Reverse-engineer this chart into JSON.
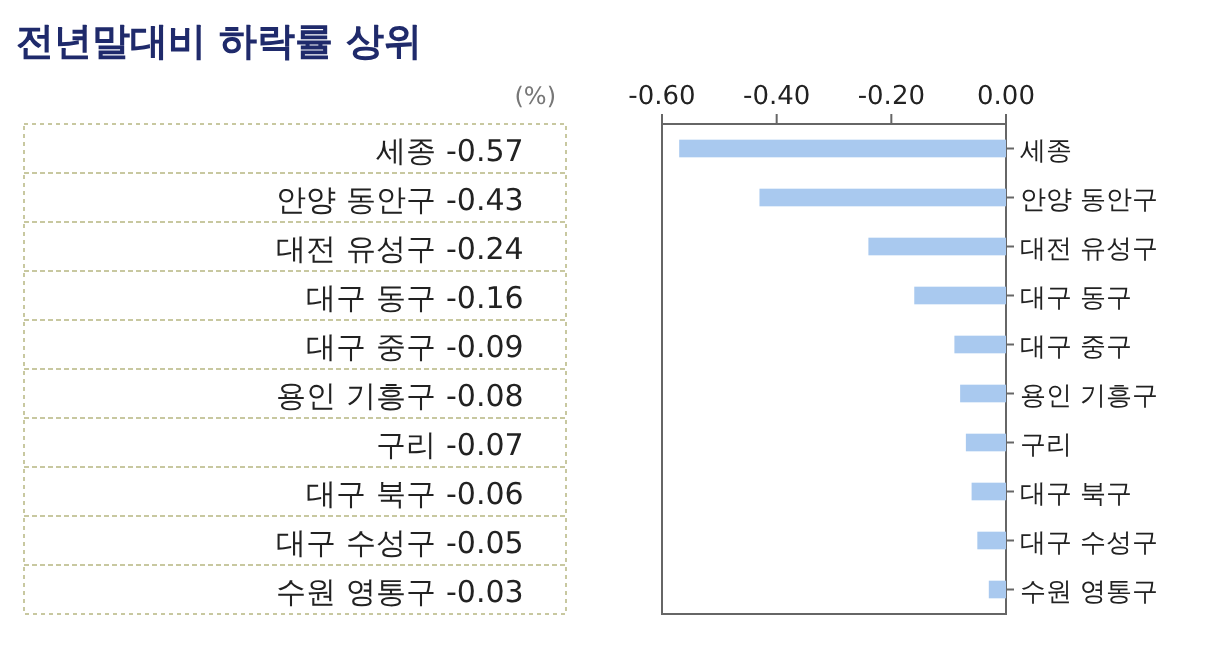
{
  "chart_data": {
    "type": "bar",
    "orientation": "horizontal",
    "title": "전년말대비 하락률 상위",
    "annotations": [
      "(%)"
    ],
    "categories": [
      "세종",
      "안양 동안구",
      "대전 유성구",
      "대구 동구",
      "대구 중구",
      "용인 기흥구",
      "구리",
      "대구 북구",
      "대구 수성구",
      "수원 영통구"
    ],
    "values": [
      -0.57,
      -0.43,
      -0.24,
      -0.16,
      -0.09,
      -0.08,
      -0.07,
      -0.06,
      -0.05,
      -0.03
    ],
    "value_labels": [
      "-0.57",
      "-0.43",
      "-0.24",
      "-0.16",
      "-0.09",
      "-0.08",
      "-0.07",
      "-0.06",
      "-0.05",
      "-0.03"
    ],
    "color": "#a9c9ef",
    "xlim": [
      -0.6,
      0
    ],
    "xticks": [
      {
        "value": -0.6,
        "label": "-0.60"
      },
      {
        "value": -0.4,
        "label": "-0.40"
      },
      {
        "value": -0.2,
        "label": "-0.20"
      },
      {
        "value": 0,
        "label": "0.00"
      }
    ],
    "grid": false
  }
}
